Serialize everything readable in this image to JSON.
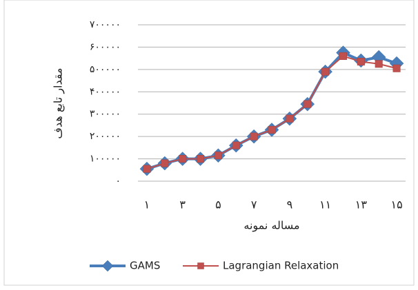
{
  "chart_data": {
    "type": "line",
    "x_label": "مساله نمونه",
    "y_label": "مقدار تابع هدف",
    "categories": [
      "۱",
      null,
      "۳",
      null,
      "۵",
      null,
      "۷",
      null,
      "۹",
      null,
      "۱۱",
      null,
      "۱۳",
      null,
      "۱۵"
    ],
    "series": [
      {
        "name": "GAMS",
        "color": "#4a7ebb",
        "marker": "diamond",
        "values": [
          55000,
          80000,
          100000,
          100000,
          115000,
          160000,
          200000,
          230000,
          280000,
          345000,
          490000,
          575000,
          540000,
          555000,
          527000
        ]
      },
      {
        "name": "Lagrangian Relaxation",
        "color": "#c0504d",
        "marker": "square",
        "values": [
          55000,
          80000,
          100000,
          100000,
          115000,
          160000,
          200000,
          230000,
          280000,
          345000,
          490000,
          560000,
          535000,
          525000,
          505000
        ]
      }
    ],
    "ylim": [
      0,
      700000
    ],
    "yticks": [
      {
        "value": 0,
        "label": "۰"
      },
      {
        "value": 100000,
        "label": "۱۰۰۰۰۰"
      },
      {
        "value": 200000,
        "label": "۲۰۰۰۰۰"
      },
      {
        "value": 300000,
        "label": "۳۰۰۰۰۰"
      },
      {
        "value": 400000,
        "label": "۴۰۰۰۰۰"
      },
      {
        "value": 500000,
        "label": "۵۰۰۰۰۰"
      },
      {
        "value": 600000,
        "label": "۶۰۰۰۰۰"
      },
      {
        "value": 700000,
        "label": "۷۰۰۰۰۰"
      }
    ],
    "grid": true,
    "legend": "bottom"
  }
}
